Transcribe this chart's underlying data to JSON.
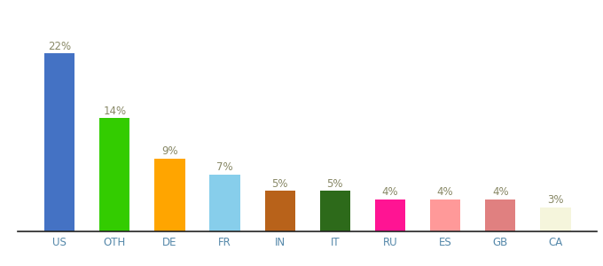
{
  "categories": [
    "US",
    "OTH",
    "DE",
    "FR",
    "IN",
    "IT",
    "RU",
    "ES",
    "GB",
    "CA"
  ],
  "values": [
    22,
    14,
    9,
    7,
    5,
    5,
    4,
    4,
    4,
    3
  ],
  "bar_colors": [
    "#4472C4",
    "#33CC00",
    "#FFA500",
    "#87CEEB",
    "#B8621A",
    "#2D6A1A",
    "#FF1493",
    "#FF9999",
    "#E08080",
    "#F5F5DC"
  ],
  "label_color": "#888866",
  "label_fontsize": 8.5,
  "xlabel_fontsize": 8.5,
  "ylim": [
    0,
    26
  ],
  "bar_width": 0.55,
  "figsize": [
    6.8,
    3.0
  ],
  "dpi": 100
}
